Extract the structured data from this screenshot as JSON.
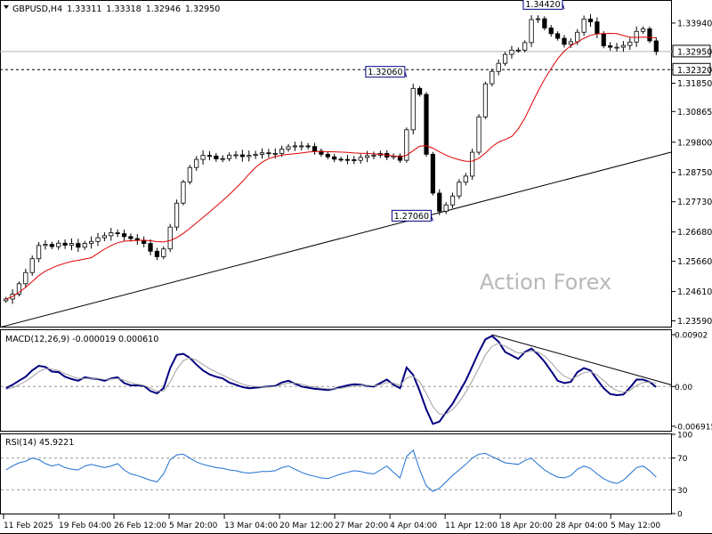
{
  "chart_data": [
    {
      "type": "candlestick",
      "panel": "price",
      "symbol_header": "GBPUSD,H4",
      "ohlc_header": {
        "open": "1.33311",
        "high": "1.33318",
        "low": "1.32946",
        "close": "1.32950"
      },
      "watermark": "Action Forex",
      "yticks": [
        "1.33940",
        "1.32950",
        "1.32320",
        "1.31850",
        "1.30865",
        "1.29800",
        "1.28750",
        "1.27730",
        "1.26680",
        "1.25660",
        "1.24610",
        "1.23590"
      ],
      "ylim": [
        1.2339,
        1.3471
      ],
      "price_markers": [
        {
          "label": "1.32950",
          "value": 1.3295,
          "style": "current"
        },
        {
          "label": "1.32320",
          "value": 1.3232,
          "style": "level"
        }
      ],
      "annotations": [
        {
          "label": "1.34420",
          "value": 1.3442
        },
        {
          "label": "1.32060",
          "value": 1.3206
        },
        {
          "label": "1.27060",
          "value": 1.2706
        }
      ],
      "horizontal_levels": [
        1.3295,
        1.3232
      ],
      "trendline": [
        {
          "date": "11 Feb 2025",
          "value": 1.2334
        },
        {
          "date": "13 May 2025",
          "value": 1.2946
        }
      ],
      "moving_average": {
        "color": "#dd0000"
      },
      "closes": [
        1.2435,
        1.2452,
        1.2488,
        1.2527,
        1.2575,
        1.2621,
        1.2625,
        1.2617,
        1.2629,
        1.2622,
        1.2628,
        1.2615,
        1.2628,
        1.2635,
        1.2648,
        1.2655,
        1.2665,
        1.2662,
        1.2652,
        1.2645,
        1.2639,
        1.2628,
        1.2601,
        1.2582,
        1.2609,
        1.2685,
        1.2768,
        1.2842,
        1.2892,
        1.292,
        1.2934,
        1.2932,
        1.2922,
        1.2923,
        1.2935,
        1.2936,
        1.293,
        1.2934,
        1.2938,
        1.2943,
        1.294,
        1.2941,
        1.2956,
        1.2964,
        1.2967,
        1.2967,
        1.2965,
        1.2949,
        1.2938,
        1.2929,
        1.2921,
        1.292,
        1.2919,
        1.2917,
        1.2927,
        1.2933,
        1.2935,
        1.2941,
        1.2928,
        1.2932,
        1.2917,
        1.3023,
        1.3167,
        1.3146,
        1.2938,
        1.2803,
        1.274,
        1.2762,
        1.2793,
        1.2841,
        1.2862,
        1.2945,
        1.3068,
        1.3183,
        1.3226,
        1.3254,
        1.3285,
        1.33,
        1.33,
        1.3326,
        1.3406,
        1.3409,
        1.3377,
        1.3357,
        1.3341,
        1.332,
        1.3329,
        1.3362,
        1.3408,
        1.3398,
        1.3357,
        1.3315,
        1.331,
        1.331,
        1.3316,
        1.3328,
        1.3365,
        1.3374,
        1.3332,
        1.3295
      ]
    },
    {
      "type": "line",
      "panel": "macd",
      "label": "MACD(12,26,9) -0.000019 0.000610",
      "yticks": [
        "0.00902",
        "0.00",
        "-0.006915"
      ],
      "ylim": [
        -0.0077,
        0.0098
      ],
      "series": [
        {
          "role": "macd",
          "color": "#000080",
          "values": [
            -0.0003,
            0.0003,
            0.001,
            0.0017,
            0.0028,
            0.0036,
            0.0034,
            0.0026,
            0.0025,
            0.0017,
            0.0013,
            0.001,
            0.0016,
            0.0014,
            0.0013,
            0.001,
            0.0014,
            0.0016,
            0.0006,
            0.0002,
            0.0002,
            0.0001,
            -0.0008,
            -0.0012,
            -0.0003,
            0.0032,
            0.0055,
            0.0057,
            0.005,
            0.0038,
            0.0028,
            0.0021,
            0.0017,
            0.0014,
            0.0007,
            0.0003,
            -0.0001,
            -0.0003,
            -0.0002,
            -0.0001,
            0.0,
            0.0001,
            0.0007,
            0.001,
            0.0005,
            0.0,
            -0.0002,
            -0.0004,
            -0.0005,
            -0.0006,
            -0.0004,
            -0.0001,
            0.0002,
            0.0004,
            0.0003,
            0.0001,
            0.0,
            0.0006,
            0.0012,
            0.0003,
            -0.0003,
            0.0033,
            0.002,
            -0.0008,
            -0.004,
            -0.0065,
            -0.0061,
            -0.0045,
            -0.003,
            -0.001,
            0.001,
            0.0035,
            0.006,
            0.0082,
            0.0088,
            0.0078,
            0.006,
            0.0054,
            0.0048,
            0.006,
            0.0066,
            0.0056,
            0.0043,
            0.0027,
            0.001,
            0.0006,
            0.0008,
            0.0025,
            0.0032,
            0.0028,
            0.0012,
            -0.0003,
            -0.0013,
            -0.0015,
            -0.0014,
            -0.0002,
            0.0012,
            0.0012,
            0.0008,
            -0.0001
          ]
        },
        {
          "role": "signal",
          "color": "#a0a0a0",
          "values": [
            -0.0005,
            -0.0002,
            0.0003,
            0.0009,
            0.0017,
            0.0026,
            0.0031,
            0.003,
            0.0028,
            0.0022,
            0.0018,
            0.0014,
            0.0014,
            0.0014,
            0.0014,
            0.0012,
            0.0013,
            0.0014,
            0.0011,
            0.0007,
            0.0004,
            0.0002,
            -0.0003,
            -0.0008,
            -0.0008,
            0.0008,
            0.003,
            0.0045,
            0.005,
            0.0046,
            0.0038,
            0.0031,
            0.0025,
            0.002,
            0.0014,
            0.0009,
            0.0004,
            0.0001,
            0.0,
            -0.0001,
            -0.0001,
            0.0,
            0.0003,
            0.0006,
            0.0006,
            0.0004,
            0.0001,
            -0.0001,
            -0.0003,
            -0.0004,
            -0.0004,
            -0.0003,
            -0.0001,
            0.0001,
            0.0002,
            0.0002,
            0.0001,
            0.0003,
            0.0007,
            0.0006,
            0.0002,
            0.0015,
            0.0018,
            0.0008,
            -0.0012,
            -0.0035,
            -0.0048,
            -0.0048,
            -0.004,
            -0.0027,
            -0.001,
            0.001,
            0.0032,
            0.0055,
            0.007,
            0.0075,
            0.007,
            0.0064,
            0.0058,
            0.0059,
            0.0062,
            0.006,
            0.0053,
            0.0042,
            0.0028,
            0.0018,
            0.0013,
            0.0018,
            0.0024,
            0.0026,
            0.002,
            0.001,
            0.0,
            -0.0007,
            -0.001,
            -0.0007,
            0.0002,
            0.0007,
            0.0008,
            0.0006
          ]
        }
      ],
      "zero_line": 0
    },
    {
      "type": "line",
      "panel": "rsi",
      "label": "RSI(14) 45.9221",
      "yticks": [
        "100",
        "70",
        "30",
        "0"
      ],
      "ylim": [
        0,
        100
      ],
      "levels": [
        70,
        30
      ],
      "series": [
        {
          "role": "rsi",
          "color": "#1e6fd0",
          "values": [
            55,
            60,
            64,
            66,
            70,
            68,
            63,
            60,
            62,
            58,
            56,
            55,
            60,
            62,
            60,
            58,
            60,
            63,
            55,
            50,
            48,
            45,
            42,
            40,
            50,
            68,
            74,
            75,
            70,
            65,
            62,
            60,
            58,
            57,
            55,
            54,
            52,
            51,
            52,
            53,
            53,
            54,
            58,
            60,
            56,
            52,
            49,
            47,
            45,
            44,
            47,
            50,
            52,
            54,
            53,
            51,
            50,
            55,
            60,
            52,
            45,
            72,
            80,
            55,
            35,
            28,
            32,
            40,
            48,
            55,
            62,
            70,
            75,
            76,
            72,
            68,
            64,
            63,
            62,
            67,
            70,
            62,
            55,
            50,
            46,
            45,
            48,
            56,
            60,
            57,
            50,
            44,
            40,
            38,
            42,
            50,
            58,
            60,
            54,
            46
          ]
        }
      ]
    }
  ],
  "time_axis": {
    "labels": [
      "11 Feb 2025",
      "19 Feb 04:00",
      "26 Feb 12:00",
      "5 Mar 20:00",
      "13 Mar 04:00",
      "20 Mar 12:00",
      "27 Mar 20:00",
      "4 Apr 04:00",
      "11 Apr 12:00",
      "18 Apr 20:00",
      "28 Apr 04:00",
      "5 May 12:00"
    ]
  },
  "colors": {
    "background": "#ffffff",
    "candle": "#000000",
    "grid": "#c8c8c8"
  }
}
